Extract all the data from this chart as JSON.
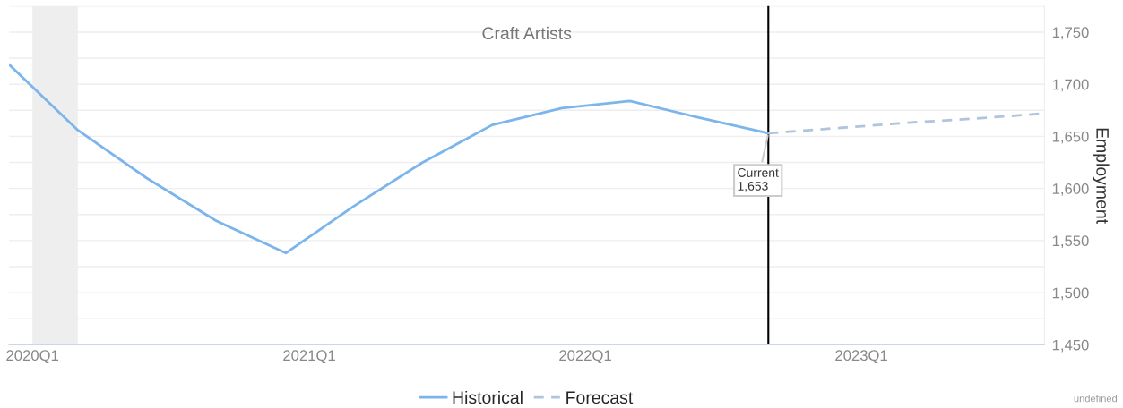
{
  "chart_data": {
    "type": "line",
    "title": "Craft Artists",
    "ylabel": "Employment",
    "x": [
      "2020-01",
      "2020-04",
      "2020-07",
      "2020-10",
      "2021-01",
      "2021-04",
      "2021-07",
      "2021-10",
      "2022-01",
      "2022-04",
      "2022-07",
      "2022-10",
      "2023-01",
      "2023-04",
      "2023-07",
      "2023-10"
    ],
    "series": [
      {
        "name": "Historical",
        "color": "#7cb5ec",
        "line_style": "solid",
        "values": [
          1719,
          1656,
          1610,
          1569,
          1538,
          1583,
          1625,
          1661,
          1677,
          1684,
          1668,
          1653,
          null,
          null,
          null,
          null
        ]
      },
      {
        "name": "Forecast",
        "color": "#b0c4de",
        "line_style": "dashed",
        "values": [
          null,
          null,
          null,
          null,
          null,
          null,
          null,
          null,
          null,
          null,
          null,
          1653,
          1658,
          1663,
          1667,
          1672
        ]
      }
    ],
    "xlim": [
      "2020-01",
      "2023-10"
    ],
    "xticks": [
      {
        "value": "2020-02",
        "label": "2020Q1"
      },
      {
        "value": "2021-02",
        "label": "2021Q1"
      },
      {
        "value": "2022-02",
        "label": "2022Q1"
      },
      {
        "value": "2023-02",
        "label": "2023Q1"
      }
    ],
    "ylim": [
      1450,
      1775
    ],
    "yticks": [
      {
        "value": 1450,
        "label": "1,450"
      },
      {
        "value": 1475,
        "label": null
      },
      {
        "value": 1500,
        "label": "1,500"
      },
      {
        "value": 1525,
        "label": null
      },
      {
        "value": 1550,
        "label": "1,550"
      },
      {
        "value": 1575,
        "label": null
      },
      {
        "value": 1600,
        "label": "1,600"
      },
      {
        "value": 1625,
        "label": null
      },
      {
        "value": 1650,
        "label": "1,650"
      },
      {
        "value": 1675,
        "label": null
      },
      {
        "value": 1700,
        "label": "1,700"
      },
      {
        "value": 1725,
        "label": null
      },
      {
        "value": 1750,
        "label": "1,750"
      },
      {
        "value": 1775,
        "label": null
      }
    ],
    "bands": [
      {
        "axis": "x",
        "from": "2020-02",
        "to": "2020-04",
        "color": "#eeeeee"
      }
    ],
    "ref_lines": [
      {
        "axis": "x",
        "value": "2022-10",
        "color": "#000000"
      }
    ],
    "annotations": [
      {
        "text": "Current\n1,653",
        "x": "2022-10",
        "y": 1653
      },
      "undefined"
    ],
    "grid": "y",
    "legend": "bottom"
  }
}
